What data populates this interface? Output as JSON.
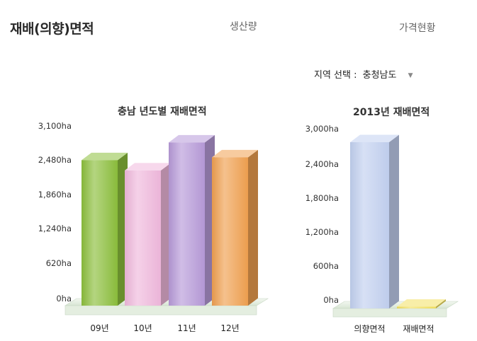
{
  "tabs": {
    "active": "재배(의향)면적",
    "production": "생산량",
    "price": "가격현황"
  },
  "region": {
    "label": "지역 선택 :",
    "selected": "충청남도"
  },
  "chart_data": [
    {
      "type": "bar",
      "title": "충남 년도별 재배면적",
      "categories": [
        "09년",
        "10년",
        "11년",
        "12년"
      ],
      "values": [
        2550,
        2370,
        2860,
        2600
      ],
      "ylim": [
        0,
        3100
      ],
      "yticks": [
        "0ha",
        "620ha",
        "1,240ha",
        "1,860ha",
        "2,480ha",
        "3,100ha"
      ],
      "colors": [
        "#8cbf3c",
        "#f0b8dc",
        "#b79ad8",
        "#f0a050"
      ],
      "grid": false,
      "legend": "none"
    },
    {
      "type": "bar",
      "title": "2013년 재배면적",
      "categories": [
        "의향면적",
        "재배면적"
      ],
      "values": [
        2820,
        30
      ],
      "ylim": [
        0,
        3000
      ],
      "yticks": [
        "0ha",
        "600ha",
        "1,200ha",
        "1,800ha",
        "2,400ha",
        "3,000ha"
      ],
      "colors": [
        "#c2d0f0",
        "#f2e060"
      ],
      "grid": false,
      "legend": "none"
    }
  ]
}
